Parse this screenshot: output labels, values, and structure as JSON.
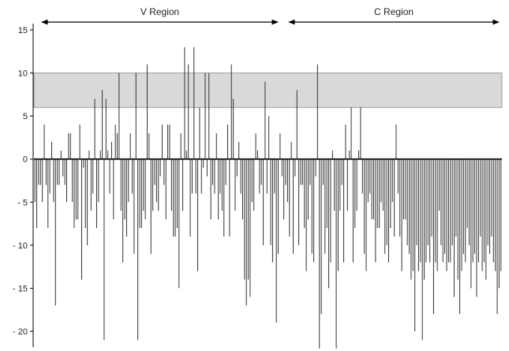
{
  "chart_data": {
    "type": "bar",
    "title": "",
    "xlabel": "",
    "ylabel": "",
    "ylim": [
      -22,
      16
    ],
    "yticks": [
      15,
      10,
      5,
      0,
      -5,
      -10,
      -15,
      -20
    ],
    "grid": false,
    "highlight_band": {
      "from": 6,
      "to": 10,
      "color": "#d9d9d9"
    },
    "regions": [
      {
        "label": "V Region",
        "start": 1,
        "end": 132
      },
      {
        "label": "C Region",
        "start": 133,
        "end": 250
      }
    ],
    "series": [
      {
        "values": [
          -5,
          -8,
          -3,
          -3,
          -5,
          4,
          -3,
          -8,
          -4,
          2,
          -5,
          -17,
          -3,
          -3,
          1,
          -2,
          -3,
          -5,
          3,
          3,
          -5,
          -8,
          -7,
          -7,
          4,
          -14,
          -1,
          -8,
          -10,
          1,
          -6,
          -4,
          7,
          -8,
          -5,
          1,
          8,
          -21,
          7,
          1,
          -4,
          2,
          -7,
          4,
          3,
          10,
          -6,
          -12,
          -7,
          -9,
          -5,
          3,
          -4,
          -11,
          10,
          -21,
          -8,
          -8,
          -6,
          -7,
          11,
          3,
          -11,
          -6,
          -3,
          -5,
          -6,
          -2,
          4,
          -3,
          -7,
          4,
          4,
          -6,
          -9,
          -9,
          -8,
          -15,
          3,
          -6,
          13,
          1,
          11,
          -9,
          -4,
          13,
          -4,
          -13,
          6,
          -4,
          -1,
          10,
          -2,
          10,
          -7,
          -3,
          -4,
          3,
          -7,
          -4,
          -6,
          -9,
          -3,
          4,
          -9,
          11,
          7,
          -6,
          -2,
          2,
          -4,
          -7,
          -14,
          -17,
          -14,
          -16,
          -5,
          -6,
          3,
          1,
          -4,
          -3,
          -10,
          9,
          -4,
          5,
          -10,
          -12,
          -4,
          -19,
          -11,
          3,
          -2,
          -7,
          -3,
          -5,
          -9,
          2,
          -11,
          -2,
          8,
          -10,
          -3,
          -3,
          -8,
          -13,
          -7,
          -3,
          -11,
          -12,
          -2,
          11,
          -22,
          -18,
          -3,
          -11,
          -8,
          -15,
          -12,
          1,
          -6,
          -22,
          -13,
          -6,
          -3,
          -12,
          4,
          -6,
          1,
          6,
          -12,
          -8,
          -6,
          1,
          6,
          -4,
          -11,
          -13,
          -5,
          -4,
          -7,
          -7,
          -12,
          -8,
          -8,
          -5,
          -6,
          -11,
          -10,
          -12,
          -8,
          -5,
          -9,
          4,
          -4,
          -9,
          -13,
          -7,
          -7,
          -10,
          -11,
          -14,
          -13,
          -20,
          -10,
          -13,
          -12,
          -21,
          -14,
          -12,
          -10,
          -12,
          -9,
          -18,
          -12,
          -13,
          -6,
          -10,
          -12,
          -11,
          -13,
          -12,
          -12,
          -10,
          -16,
          -9,
          -14,
          -18,
          -13,
          -11,
          -12,
          -8,
          -10,
          -15,
          -12,
          -11,
          -16,
          -12,
          -9,
          -13,
          -12,
          -14,
          -10,
          -11,
          -9,
          -12,
          -13,
          -18,
          -15,
          -13
        ]
      }
    ]
  }
}
